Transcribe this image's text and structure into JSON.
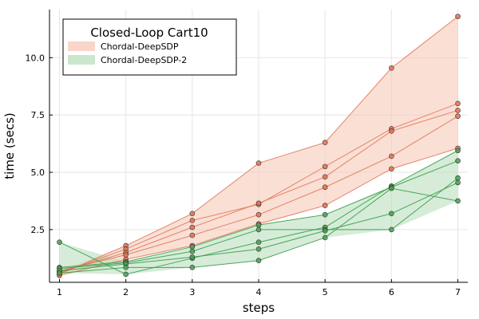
{
  "chart_data": {
    "type": "line",
    "title": "",
    "xlabel": "steps",
    "ylabel": "time (secs)",
    "xlim": [
      0.85,
      7.15
    ],
    "ylim": [
      0.2,
      12.1
    ],
    "xticks": [
      1,
      2,
      3,
      4,
      5,
      6,
      7
    ],
    "xtick_labels": [
      "1",
      "2",
      "3",
      "4",
      "5",
      "6",
      "7"
    ],
    "yticks": [
      2.5,
      5.0,
      7.5,
      10.0
    ],
    "ytick_labels": [
      "2.5",
      "5.0",
      "7.5",
      "10.0"
    ],
    "grid": true,
    "legend": {
      "title": "Closed-Loop Cart10",
      "position": "top-left",
      "entries": [
        "Chordal-DeepSDP",
        "Chordal-DeepSDP-2"
      ]
    },
    "x": [
      1,
      2,
      3,
      4,
      5,
      6,
      7
    ],
    "series": [
      {
        "name": "Chordal-DeepSDP",
        "line_color": "#e07a5a",
        "band_color": "#f5c4b3",
        "marker_color": "#e2704f",
        "runs": [
          [
            0.55,
            1.8,
            3.2,
            5.4,
            6.3,
            9.55,
            11.8
          ],
          [
            0.6,
            1.65,
            2.9,
            3.6,
            5.25,
            6.9,
            8.0
          ],
          [
            0.65,
            1.5,
            2.6,
            3.65,
            4.8,
            6.8,
            7.7
          ],
          [
            0.7,
            1.4,
            2.25,
            3.15,
            4.35,
            5.7,
            7.45
          ],
          [
            0.5,
            1.2,
            1.8,
            2.75,
            3.55,
            5.15,
            6.05
          ]
        ]
      },
      {
        "name": "Chordal-DeepSDP-2",
        "line_color": "#3a9e4a",
        "band_color": "#b4dcb8",
        "marker_color": "#45a052",
        "runs": [
          [
            1.95,
            0.55,
            1.25,
            1.95,
            2.6,
            4.4,
            5.95
          ],
          [
            0.85,
            1.1,
            1.75,
            2.7,
            3.15,
            4.35,
            5.5
          ],
          [
            0.8,
            1.05,
            1.55,
            2.5,
            2.5,
            2.5,
            4.75
          ],
          [
            0.7,
            1.0,
            1.3,
            1.65,
            2.45,
            3.2,
            4.55
          ],
          [
            0.6,
            0.85,
            0.85,
            1.15,
            2.15,
            4.3,
            3.75
          ]
        ]
      }
    ]
  }
}
